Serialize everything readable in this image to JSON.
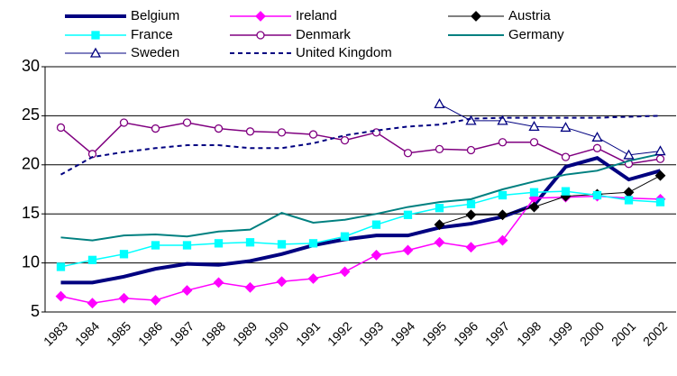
{
  "chart_data": {
    "type": "line",
    "legend": "top",
    "grid": true,
    "categories": [
      "1983",
      "1984",
      "1985",
      "1986",
      "1987",
      "1988",
      "1989",
      "1990",
      "1991",
      "1992",
      "1993",
      "1994",
      "1995",
      "1996",
      "1997",
      "1998",
      "1999",
      "2000",
      "2001",
      "2002"
    ],
    "ylim": [
      5,
      30
    ],
    "yticks": [
      5,
      10,
      15,
      20,
      25,
      30
    ],
    "series": [
      {
        "name": "Belgium",
        "color": "#000080",
        "values": [
          8.0,
          8.0,
          8.6,
          9.4,
          9.9,
          9.8,
          10.2,
          10.9,
          11.8,
          12.4,
          12.8,
          12.8,
          13.6,
          14.0,
          14.7,
          15.9,
          19.8,
          20.7,
          18.5,
          19.4
        ]
      },
      {
        "name": "Ireland",
        "color": "#ff00ff",
        "values": [
          6.6,
          5.9,
          6.4,
          6.2,
          7.2,
          8.0,
          7.5,
          8.1,
          8.4,
          9.1,
          10.8,
          11.3,
          12.1,
          11.6,
          12.3,
          16.6,
          16.7,
          16.8,
          16.6,
          16.5
        ]
      },
      {
        "name": "Austria",
        "color": "#000000",
        "values": [
          null,
          null,
          null,
          null,
          null,
          null,
          null,
          null,
          null,
          null,
          null,
          null,
          13.9,
          14.9,
          14.9,
          15.7,
          16.8,
          17.0,
          17.2,
          18.9
        ]
      },
      {
        "name": "France",
        "color": "#00ffff",
        "values": [
          9.6,
          10.3,
          10.9,
          11.8,
          11.8,
          12.0,
          12.1,
          11.9,
          12.0,
          12.7,
          13.9,
          14.9,
          15.6,
          16.0,
          16.9,
          17.2,
          17.3,
          16.9,
          16.4,
          16.2
        ]
      },
      {
        "name": "Denmark",
        "color": "#800080",
        "values": [
          23.8,
          21.1,
          24.3,
          23.7,
          24.3,
          23.7,
          23.4,
          23.3,
          23.1,
          22.5,
          23.3,
          21.2,
          21.6,
          21.5,
          22.3,
          22.3,
          20.8,
          21.7,
          20.1,
          20.6
        ]
      },
      {
        "name": "Germany",
        "color": "#008080",
        "values": [
          12.6,
          12.3,
          12.8,
          12.9,
          12.7,
          13.2,
          13.4,
          15.1,
          14.1,
          14.4,
          15.0,
          15.7,
          16.2,
          16.5,
          17.5,
          18.3,
          19.0,
          19.4,
          20.4,
          21.1
        ]
      },
      {
        "name": "Sweden",
        "color": "#000080",
        "values": [
          null,
          null,
          null,
          null,
          null,
          null,
          null,
          null,
          null,
          null,
          null,
          null,
          26.2,
          24.5,
          24.5,
          23.9,
          23.8,
          22.8,
          21.0,
          21.4
        ]
      },
      {
        "name": "United Kingdom",
        "color": "#000080",
        "values": [
          19.0,
          20.8,
          21.3,
          21.7,
          22.0,
          22.0,
          21.7,
          21.7,
          22.2,
          23.0,
          23.5,
          23.9,
          24.1,
          24.7,
          24.8,
          24.8,
          24.8,
          24.8,
          24.9,
          25.0
        ]
      }
    ]
  }
}
